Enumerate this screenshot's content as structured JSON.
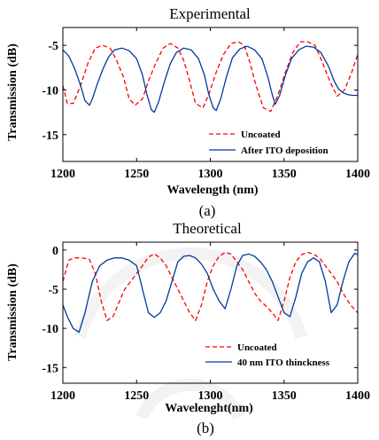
{
  "chart_data": [
    {
      "type": "line",
      "title": "Experimental",
      "panel_label": "(a)",
      "xlabel": "Wavelength (nm)",
      "ylabel": "Transmission (dB)",
      "xlim": [
        1200,
        1400
      ],
      "ylim": [
        -18,
        -3
      ],
      "xticks": [
        1200,
        1250,
        1300,
        1350,
        1400
      ],
      "yticks": [
        -5,
        -10,
        -15
      ],
      "grid": false,
      "legend_position": "bottom-right",
      "series": [
        {
          "name": "Uncoated",
          "color": "#ff0000",
          "style": "dashed",
          "x": [
            1200,
            1203,
            1207,
            1212,
            1217,
            1222,
            1227,
            1232,
            1236,
            1241,
            1245,
            1249,
            1254,
            1258,
            1263,
            1268,
            1273,
            1278,
            1282,
            1286,
            1290,
            1295,
            1299,
            1304,
            1309,
            1314,
            1319,
            1323,
            1327,
            1331,
            1336,
            1341,
            1346,
            1351,
            1356,
            1361,
            1366,
            1371,
            1375,
            1381,
            1386,
            1391,
            1396,
            1400
          ],
          "y": [
            -9.5,
            -11.5,
            -11.5,
            -9.5,
            -7,
            -5.3,
            -5,
            -5.3,
            -6.5,
            -8.5,
            -11,
            -11.7,
            -11,
            -9,
            -7,
            -5.3,
            -4.8,
            -5.3,
            -6.7,
            -9,
            -11.5,
            -12,
            -10.5,
            -8,
            -6,
            -4.8,
            -4.6,
            -5,
            -7,
            -9.5,
            -12,
            -12.4,
            -10.5,
            -8,
            -5.8,
            -4.6,
            -4.6,
            -5,
            -6.5,
            -9,
            -10.7,
            -10,
            -8,
            -6
          ]
        },
        {
          "name": "After ITO deposition",
          "color": "#003a9b",
          "style": "solid",
          "x": [
            1200,
            1204,
            1208,
            1212,
            1215,
            1218,
            1220,
            1223,
            1227,
            1231,
            1235,
            1240,
            1245,
            1250,
            1254,
            1257,
            1260,
            1262,
            1265,
            1269,
            1273,
            1277,
            1282,
            1287,
            1292,
            1296,
            1299,
            1302,
            1304,
            1307,
            1311,
            1315,
            1320,
            1325,
            1330,
            1335,
            1339,
            1342,
            1344,
            1347,
            1351,
            1355,
            1360,
            1365,
            1370,
            1375,
            1380,
            1384,
            1387,
            1390,
            1393,
            1396,
            1400
          ],
          "y": [
            -5.5,
            -6.2,
            -7.6,
            -9.5,
            -11.2,
            -11.7,
            -11,
            -9.5,
            -7.7,
            -6.3,
            -5.5,
            -5.3,
            -5.6,
            -6.5,
            -8.3,
            -10.5,
            -12.2,
            -12.5,
            -11.3,
            -9,
            -7,
            -5.8,
            -5.3,
            -5.5,
            -6.5,
            -8.3,
            -10.5,
            -12,
            -12.3,
            -11,
            -8.5,
            -6.4,
            -5.4,
            -5.1,
            -5.5,
            -6.5,
            -8.5,
            -10.5,
            -11.6,
            -10.6,
            -8.3,
            -6.5,
            -5.5,
            -5.1,
            -5.2,
            -5.8,
            -7.3,
            -9,
            -9.9,
            -10.3,
            -10.5,
            -10.6,
            -10.6
          ]
        }
      ]
    },
    {
      "type": "line",
      "title": "Theoretical",
      "panel_label": "(b)",
      "xlabel": "Wavelenght(nm)",
      "ylabel": "Transmission (dB)",
      "xlim": [
        1200,
        1400
      ],
      "ylim": [
        -17,
        1
      ],
      "xticks": [
        1200,
        1250,
        1300,
        1350,
        1400
      ],
      "yticks": [
        0,
        -5,
        -10,
        -15
      ],
      "grid": false,
      "legend_position": "bottom-right",
      "series": [
        {
          "name": "Uncoated",
          "color": "#ff0000",
          "style": "dashed",
          "x": [
            1200,
            1204,
            1208,
            1213,
            1218,
            1222,
            1226,
            1230,
            1234,
            1238,
            1242,
            1246,
            1250,
            1254,
            1258,
            1262,
            1266,
            1270,
            1274,
            1278,
            1282,
            1286,
            1290,
            1294,
            1298,
            1302,
            1306,
            1310,
            1314,
            1318,
            1322,
            1326,
            1330,
            1334,
            1338,
            1342,
            1346,
            1350,
            1354,
            1358,
            1362,
            1366,
            1370,
            1374,
            1378,
            1382,
            1386,
            1390,
            1395,
            1400
          ],
          "y": [
            -4,
            -1.3,
            -1,
            -1,
            -1.2,
            -3,
            -6.5,
            -9,
            -8.5,
            -6.7,
            -5,
            -4,
            -3,
            -2,
            -0.9,
            -0.5,
            -1,
            -2,
            -3.5,
            -5,
            -6.5,
            -8,
            -9,
            -7,
            -4,
            -2,
            -0.8,
            -0.3,
            -0.5,
            -1.5,
            -2.5,
            -4,
            -5.5,
            -6.5,
            -7.2,
            -8,
            -9,
            -6.5,
            -3.5,
            -1.5,
            -0.6,
            -0.3,
            -0.5,
            -1,
            -2,
            -3,
            -4,
            -5.5,
            -7,
            -8
          ]
        },
        {
          "name": "40 nm ITO thinckness",
          "color": "#003a9b",
          "style": "solid",
          "x": [
            1200,
            1203,
            1207,
            1211,
            1215,
            1220,
            1225,
            1230,
            1235,
            1240,
            1245,
            1250,
            1254,
            1258,
            1262,
            1266,
            1270,
            1274,
            1278,
            1282,
            1286,
            1290,
            1294,
            1298,
            1302,
            1306,
            1310,
            1314,
            1318,
            1322,
            1326,
            1330,
            1334,
            1338,
            1342,
            1346,
            1350,
            1354,
            1358,
            1362,
            1366,
            1370,
            1374,
            1378,
            1382,
            1386,
            1390,
            1394,
            1398,
            1400
          ],
          "y": [
            -7,
            -8.5,
            -10,
            -10.5,
            -8,
            -4,
            -2,
            -1.3,
            -1,
            -1,
            -1.3,
            -2,
            -5,
            -8,
            -8.6,
            -8,
            -6.5,
            -4,
            -1.5,
            -0.8,
            -0.7,
            -1,
            -1.8,
            -3,
            -5,
            -6.5,
            -7.5,
            -5,
            -2,
            -0.7,
            -0.5,
            -0.8,
            -1.5,
            -2.5,
            -4,
            -6,
            -8,
            -8.5,
            -6,
            -3,
            -1.5,
            -1,
            -1.5,
            -4,
            -8,
            -7,
            -4,
            -1.5,
            -0.4,
            -0.6
          ]
        }
      ]
    }
  ]
}
